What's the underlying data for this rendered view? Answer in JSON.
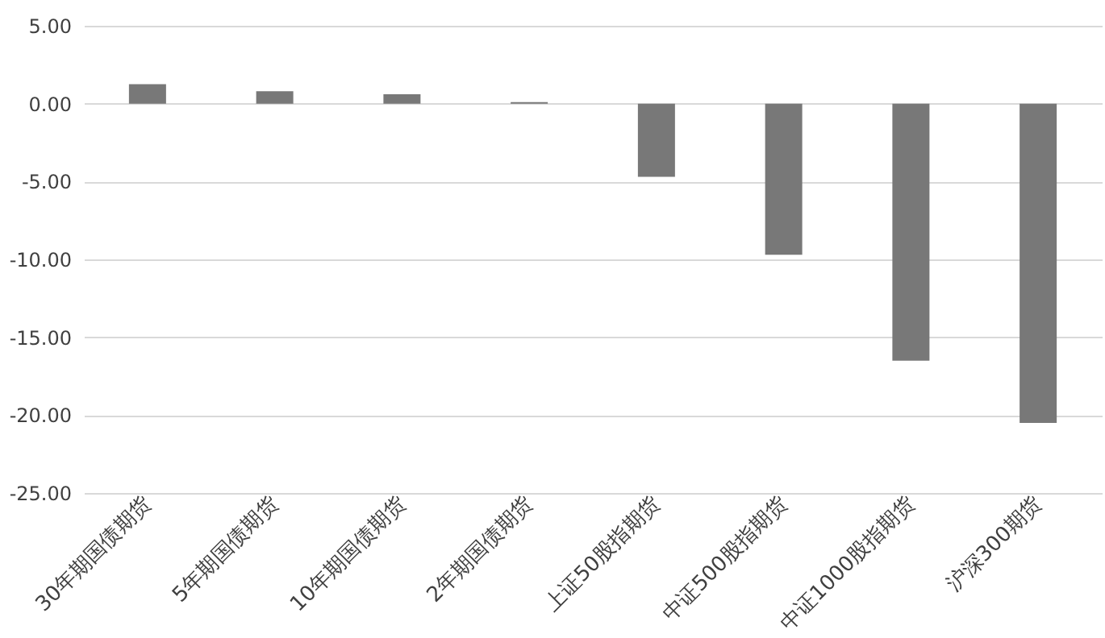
{
  "chart_data": {
    "type": "bar",
    "categories": [
      "30年期国债期货",
      "5年期国债期货",
      "10年期国债期货",
      "2年期国债期货",
      "上证50股指期货",
      "中证500股指期货",
      "中证1000股指期货",
      "沪深300期货"
    ],
    "values": [
      1.25,
      0.8,
      0.6,
      0.1,
      -4.7,
      -9.7,
      -16.5,
      -20.5
    ],
    "color": "#787878",
    "ylim": [
      -25,
      5
    ],
    "yticks": [
      {
        "value": -25,
        "label": "-25.00"
      },
      {
        "value": -20,
        "label": "-20.00"
      },
      {
        "value": -15,
        "label": "-15.00"
      },
      {
        "value": -10,
        "label": "-10.00"
      },
      {
        "value": -5,
        "label": "-5.00"
      },
      {
        "value": 0,
        "label": "0.00"
      },
      {
        "value": 5,
        "label": "5.00"
      }
    ],
    "grid": "y"
  }
}
